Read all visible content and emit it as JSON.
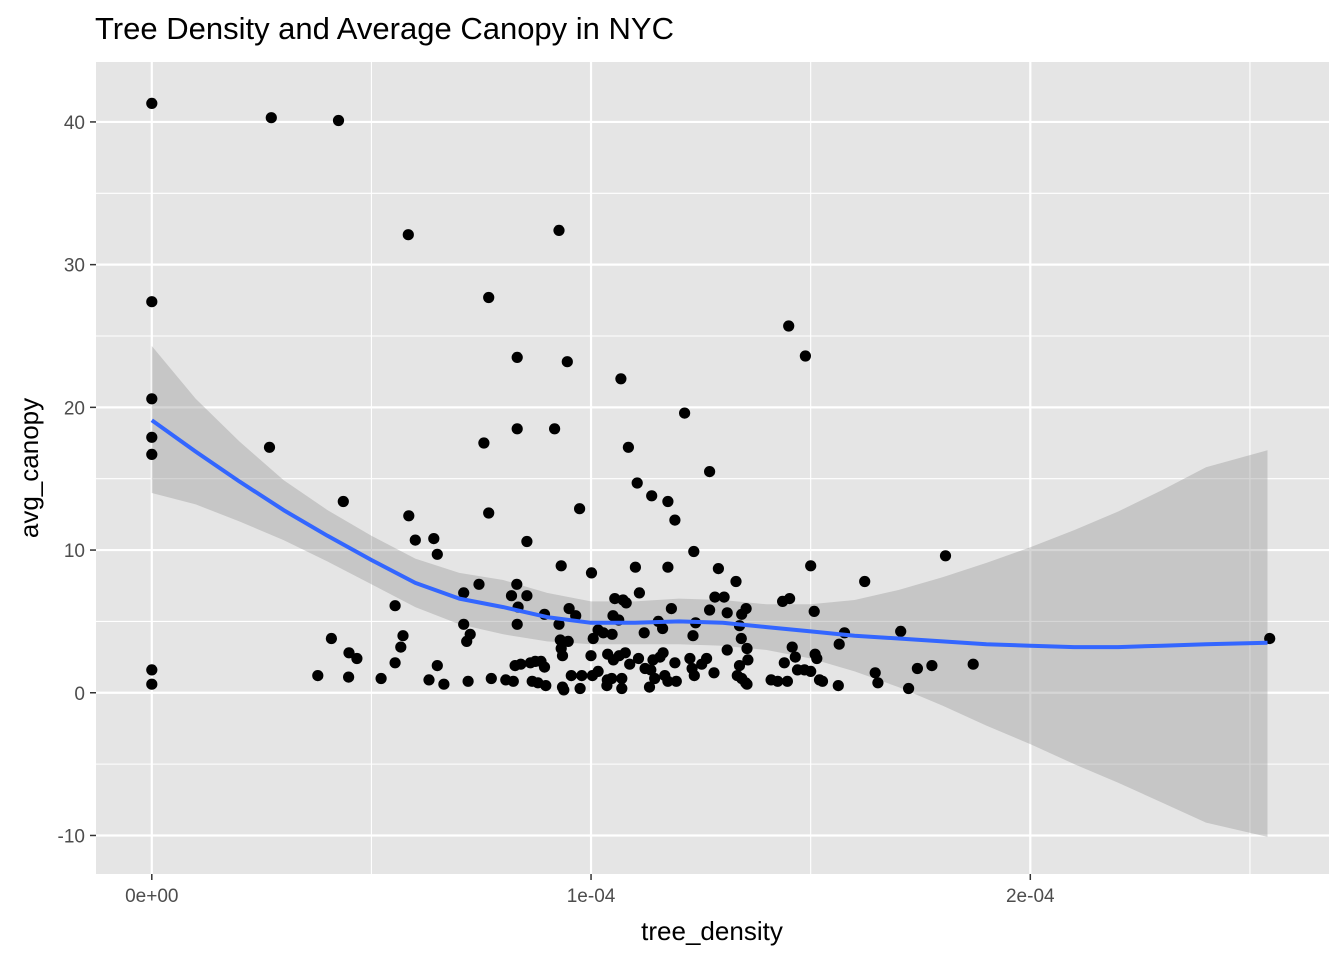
{
  "chart_data": {
    "type": "scatter",
    "title": "Tree Density and Average Canopy in NYC",
    "xlabel": "tree_density",
    "ylabel": "avg_canopy",
    "xlim": [
      -1.27e-05,
      0.000268
    ],
    "ylim": [
      -12.7,
      44.2
    ],
    "x_ticks": [
      0,
      0.0001,
      0.0002
    ],
    "x_tick_labels": [
      "0e+00",
      "1e-04",
      "2e-04"
    ],
    "y_ticks": [
      -10,
      0,
      10,
      20,
      30,
      40
    ],
    "y_tick_labels": [
      "-10",
      "0",
      "10",
      "20",
      "30",
      "40"
    ],
    "grid": true,
    "colors": {
      "panel_background": "#e5e5e5",
      "grid": "#ffffff",
      "points": "#000000",
      "smooth_line": "#3366ff",
      "confidence_band": "#999999"
    },
    "points": [
      [
        0,
        41.3
      ],
      [
        0,
        27.4
      ],
      [
        0,
        20.6
      ],
      [
        0,
        17.9
      ],
      [
        0,
        16.7
      ],
      [
        0,
        1.6
      ],
      [
        0,
        0.6
      ],
      [
        2.72e-05,
        40.3
      ],
      [
        4.25e-05,
        40.1
      ],
      [
        5.84e-05,
        32.1
      ],
      [
        2.68e-05,
        17.2
      ],
      [
        4.36e-05,
        13.4
      ],
      [
        5.85e-05,
        12.4
      ],
      [
        6e-05,
        10.7
      ],
      [
        6.42e-05,
        10.8
      ],
      [
        6.5e-05,
        9.7
      ],
      [
        5.54e-05,
        6.1
      ],
      [
        5.72e-05,
        4.0
      ],
      [
        5.67e-05,
        3.2
      ],
      [
        5.54e-05,
        2.1
      ],
      [
        4.09e-05,
        3.8
      ],
      [
        4.49e-05,
        2.8
      ],
      [
        4.67e-05,
        2.4
      ],
      [
        3.78e-05,
        1.2
      ],
      [
        4.48e-05,
        1.1
      ],
      [
        5.22e-05,
        1.0
      ],
      [
        6.31e-05,
        0.9
      ],
      [
        6.5e-05,
        1.9
      ],
      [
        6.65e-05,
        0.6
      ],
      [
        7.2e-05,
        0.8
      ],
      [
        9.27e-05,
        32.4
      ],
      [
        7.67e-05,
        27.7
      ],
      [
        8.32e-05,
        23.5
      ],
      [
        9.46e-05,
        23.2
      ],
      [
        8.32e-05,
        18.5
      ],
      [
        9.17e-05,
        18.5
      ],
      [
        7.56e-05,
        17.5
      ],
      [
        7.67e-05,
        12.6
      ],
      [
        8.54e-05,
        10.6
      ],
      [
        9.74e-05,
        12.9
      ],
      [
        9.32e-05,
        8.9
      ],
      [
        0.0001001,
        8.4
      ],
      [
        7.1e-05,
        7.0
      ],
      [
        7.45e-05,
        7.6
      ],
      [
        8.31e-05,
        7.6
      ],
      [
        8.19e-05,
        6.8
      ],
      [
        8.54e-05,
        6.8
      ],
      [
        8.34e-05,
        6.0
      ],
      [
        9.5e-05,
        5.9
      ],
      [
        9.65e-05,
        5.4
      ],
      [
        8.94e-05,
        5.5
      ],
      [
        8.32e-05,
        4.8
      ],
      [
        9.27e-05,
        4.8
      ],
      [
        7.1e-05,
        4.8
      ],
      [
        7.25e-05,
        4.1
      ],
      [
        7.17e-05,
        3.6
      ],
      [
        9.3e-05,
        3.7
      ],
      [
        9.48e-05,
        3.6
      ],
      [
        9.32e-05,
        3.1
      ],
      [
        9.35e-05,
        2.6
      ],
      [
        8.27e-05,
        1.9
      ],
      [
        8.4e-05,
        2.0
      ],
      [
        8.62e-05,
        2.1
      ],
      [
        8.73e-05,
        2.2
      ],
      [
        8.86e-05,
        2.2
      ],
      [
        8.94e-05,
        1.8
      ],
      [
        7.73e-05,
        1.0
      ],
      [
        8.06e-05,
        0.9
      ],
      [
        8.23e-05,
        0.8
      ],
      [
        8.66e-05,
        0.8
      ],
      [
        8.79e-05,
        0.7
      ],
      [
        8.97e-05,
        0.5
      ],
      [
        9.35e-05,
        0.4
      ],
      [
        9.38e-05,
        0.2
      ],
      [
        9.75e-05,
        0.3
      ],
      [
        9.55e-05,
        1.2
      ],
      [
        9.79e-05,
        1.2
      ],
      [
        0.0001003,
        1.2
      ],
      [
        0.0001016,
        1.5
      ],
      [
        0.0001037,
        0.9
      ],
      [
        0.0001047,
        1.0
      ],
      [
        0.0001036,
        0.5
      ],
      [
        0.000107,
        1.0
      ],
      [
        0.000107,
        0.3
      ],
      [
        0.0001,
        2.6
      ],
      [
        0.0001005,
        3.8
      ],
      [
        0.0001016,
        4.4
      ],
      [
        0.0001028,
        4.2
      ],
      [
        0.0001048,
        4.1
      ],
      [
        0.000105,
        5.4
      ],
      [
        0.0001054,
        6.6
      ],
      [
        0.0001073,
        6.5
      ],
      [
        0.000108,
        6.3
      ],
      [
        0.0001063,
        5.1
      ],
      [
        0.0001038,
        2.7
      ],
      [
        0.0001051,
        2.3
      ],
      [
        0.0001064,
        2.6
      ],
      [
        0.0001078,
        2.8
      ],
      [
        0.0001088,
        2.0
      ],
      [
        0.0001108,
        2.4
      ],
      [
        0.0001123,
        1.7
      ],
      [
        0.0001136,
        1.6
      ],
      [
        0.0001141,
        2.3
      ],
      [
        0.0001157,
        2.5
      ],
      [
        0.0001164,
        2.8
      ],
      [
        0.0001145,
        1.0
      ],
      [
        0.0001133,
        0.4
      ],
      [
        0.0001168,
        1.2
      ],
      [
        0.0001175,
        0.8
      ],
      [
        0.0001194,
        0.8
      ],
      [
        0.0001068,
        22.0
      ],
      [
        0.0001085,
        17.2
      ],
      [
        0.0001105,
        14.7
      ],
      [
        0.0001138,
        13.8
      ],
      [
        0.0001175,
        13.4
      ],
      [
        0.0001213,
        19.6
      ],
      [
        0.0001191,
        12.1
      ],
      [
        0.0001234,
        9.9
      ],
      [
        0.0001101,
        8.8
      ],
      [
        0.0001175,
        8.8
      ],
      [
        0.000111,
        7.0
      ],
      [
        0.0001121,
        4.2
      ],
      [
        0.0001153,
        5.0
      ],
      [
        0.0001163,
        4.5
      ],
      [
        0.0001183,
        5.9
      ],
      [
        0.0001232,
        4.0
      ],
      [
        0.0001238,
        4.9
      ],
      [
        0.0001225,
        2.4
      ],
      [
        0.000123,
        1.7
      ],
      [
        0.0001235,
        1.2
      ],
      [
        0.0001191,
        2.1
      ],
      [
        0.0001252,
        2.0
      ],
      [
        0.0001263,
        2.4
      ],
      [
        0.000127,
        15.5
      ],
      [
        0.000129,
        8.7
      ],
      [
        0.000127,
        5.8
      ],
      [
        0.0001282,
        6.7
      ],
      [
        0.0001303,
        6.7
      ],
      [
        0.000131,
        5.6
      ],
      [
        0.000133,
        7.8
      ],
      [
        0.0001343,
        5.5
      ],
      [
        0.0001353,
        5.9
      ],
      [
        0.0001338,
        4.7
      ],
      [
        0.0001342,
        3.8
      ],
      [
        0.0001355,
        3.1
      ],
      [
        0.000128,
        1.4
      ],
      [
        0.000131,
        3.0
      ],
      [
        0.0001338,
        1.9
      ],
      [
        0.0001333,
        1.2
      ],
      [
        0.0001343,
        1.0
      ],
      [
        0.0001352,
        0.7
      ],
      [
        0.0001355,
        0.6
      ],
      [
        0.0001357,
        2.3
      ],
      [
        0.000145,
        25.7
      ],
      [
        0.0001488,
        23.6
      ],
      [
        0.0001436,
        6.4
      ],
      [
        0.0001452,
        6.6
      ],
      [
        0.00015,
        8.9
      ],
      [
        0.0001508,
        5.7
      ],
      [
        0.0001458,
        3.2
      ],
      [
        0.0001465,
        2.5
      ],
      [
        0.000144,
        2.1
      ],
      [
        0.000147,
        1.6
      ],
      [
        0.0001486,
        1.6
      ],
      [
        0.00015,
        1.5
      ],
      [
        0.000151,
        2.7
      ],
      [
        0.0001514,
        2.4
      ],
      [
        0.000152,
        0.9
      ],
      [
        0.0001527,
        0.8
      ],
      [
        0.000141,
        0.9
      ],
      [
        0.0001425,
        0.8
      ],
      [
        0.0001447,
        0.8
      ],
      [
        0.0001563,
        0.5
      ],
      [
        0.0001565,
        3.4
      ],
      [
        0.0001577,
        4.2
      ],
      [
        0.0001623,
        7.8
      ],
      [
        0.0001647,
        1.4
      ],
      [
        0.0001653,
        0.7
      ],
      [
        0.0001705,
        4.3
      ],
      [
        0.0001723,
        0.3
      ],
      [
        0.0001743,
        1.7
      ],
      [
        0.0001776,
        1.9
      ],
      [
        0.0001807,
        9.6
      ],
      [
        0.000187,
        2.0
      ],
      [
        0.0002545,
        3.8
      ]
    ],
    "smooth": {
      "label": "loess fit",
      "x": [
        0,
        1e-05,
        2e-05,
        3e-05,
        4e-05,
        5e-05,
        6e-05,
        7e-05,
        8e-05,
        9e-05,
        0.0001,
        0.00011,
        0.00012,
        0.00013,
        0.00014,
        0.00015,
        0.00016,
        0.00017,
        0.00018,
        0.00019,
        0.0002,
        0.00021,
        0.00022,
        0.00023,
        0.00024,
        0.000254
      ],
      "y": [
        19.1,
        16.9,
        14.8,
        12.8,
        11.0,
        9.3,
        7.7,
        6.6,
        6.0,
        5.3,
        4.9,
        4.9,
        5.0,
        4.9,
        4.6,
        4.3,
        4.0,
        3.8,
        3.6,
        3.4,
        3.3,
        3.2,
        3.2,
        3.3,
        3.4,
        3.5
      ],
      "ymin": [
        14.0,
        13.2,
        12.0,
        10.7,
        9.2,
        7.6,
        6.0,
        4.8,
        4.1,
        3.6,
        3.4,
        3.4,
        3.4,
        3.3,
        3.0,
        2.4,
        1.5,
        0.4,
        -0.9,
        -2.3,
        -3.6,
        -5.0,
        -6.3,
        -7.7,
        -9.1,
        -10.1
      ],
      "ymax": [
        24.3,
        20.6,
        17.6,
        14.9,
        12.8,
        11.0,
        9.4,
        8.4,
        7.9,
        7.0,
        6.4,
        6.4,
        6.6,
        6.5,
        6.2,
        6.2,
        6.5,
        7.2,
        8.1,
        9.1,
        10.2,
        11.4,
        12.7,
        14.2,
        15.8,
        17.0
      ]
    }
  }
}
